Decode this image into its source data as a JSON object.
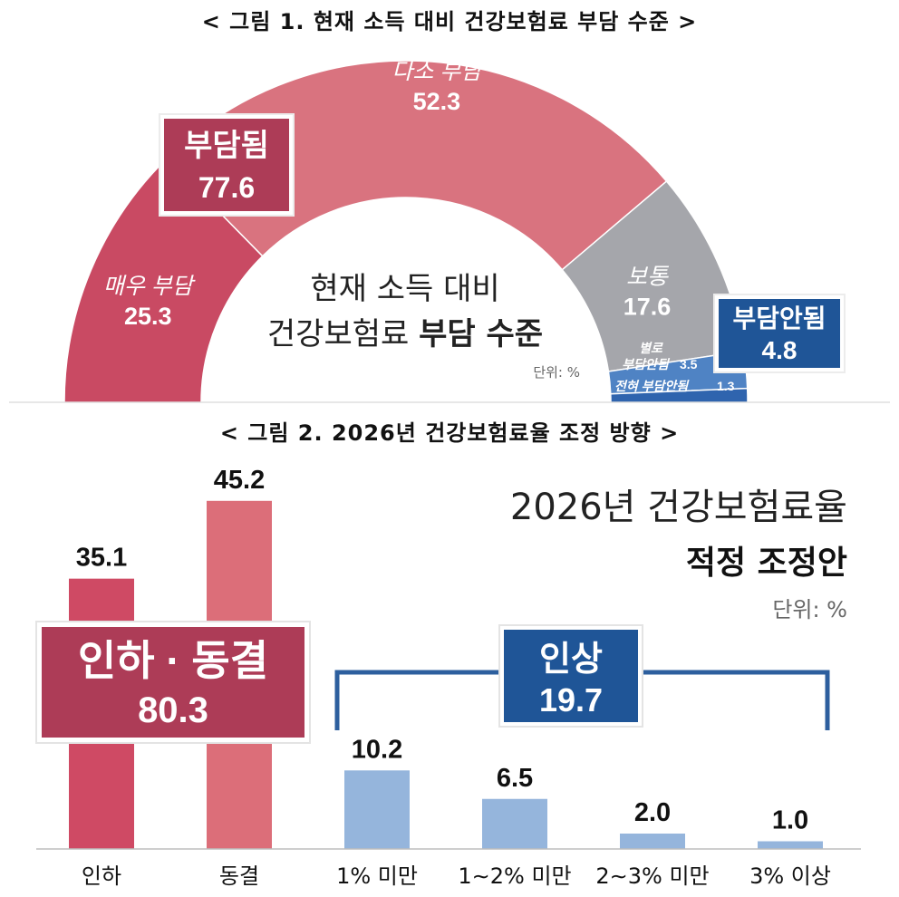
{
  "figure1": {
    "title": "< 그림 1. 현재 소득 대비 건강보험료 부담 수준 >",
    "center_line1": "현재 소득 대비",
    "center_line2_normal": "건강보험료 ",
    "center_line2_bold": "부담 수준",
    "unit": "단위: %",
    "group_burden": {
      "label": "부담됨",
      "value": "77.6"
    },
    "group_noburden": {
      "label": "부담안됨",
      "value": "4.8"
    }
  },
  "figure2": {
    "title": "< 그림 2. 2026년 건강보험료율 조정 방향 >",
    "heading1": "2026년 건강보험료율",
    "heading2": "적정 조정안",
    "unit": "단위: %",
    "group_down": {
      "label": "인하 · 동결",
      "value": "80.3"
    },
    "group_up": {
      "label": "인상",
      "value": "19.7"
    }
  },
  "colors": {
    "very_burden": "#c94a63",
    "some_burden": "#d9737f",
    "normal": "#a5a6ab",
    "not_much": "#4f83c4",
    "not_at_all": "#2f64ae",
    "box_red": "#ad3c57",
    "box_blue": "#1f5597",
    "bar_down": "#cf4a64",
    "bar_freeze": "#dc6e79",
    "bar_up": "#95b5dc",
    "bracket": "#2d5f9e"
  },
  "chart_data": [
    {
      "type": "pie",
      "title": "현재 소득 대비 건강보험료 부담 수준",
      "categories": [
        "매우 부담",
        "다소 부담",
        "보통",
        "별로 부담안됨",
        "전혀 부담안됨"
      ],
      "labels": [
        "매우 부담",
        "다소 부담",
        "보통",
        "별로\n부담안됨",
        "전혀 부담안됨"
      ],
      "values": [
        25.3,
        52.3,
        17.6,
        3.5,
        1.3
      ],
      "value_labels": [
        "25.3",
        "52.3",
        "17.6",
        "3.5",
        "1.3"
      ],
      "shape": "semicircle"
    },
    {
      "type": "bar",
      "title": "2026년 건강보험료율 적정 조정안",
      "categories": [
        "인하",
        "동결",
        "1% 미만",
        "1∼2% 미만",
        "2∼3% 미만",
        "3% 이상"
      ],
      "values": [
        35.1,
        45.2,
        10.2,
        6.5,
        2.0,
        1.0
      ],
      "value_labels": [
        "35.1",
        "45.2",
        "10.2",
        "6.5",
        "2.0",
        "1.0"
      ],
      "ylim": [
        0,
        50
      ]
    }
  ]
}
